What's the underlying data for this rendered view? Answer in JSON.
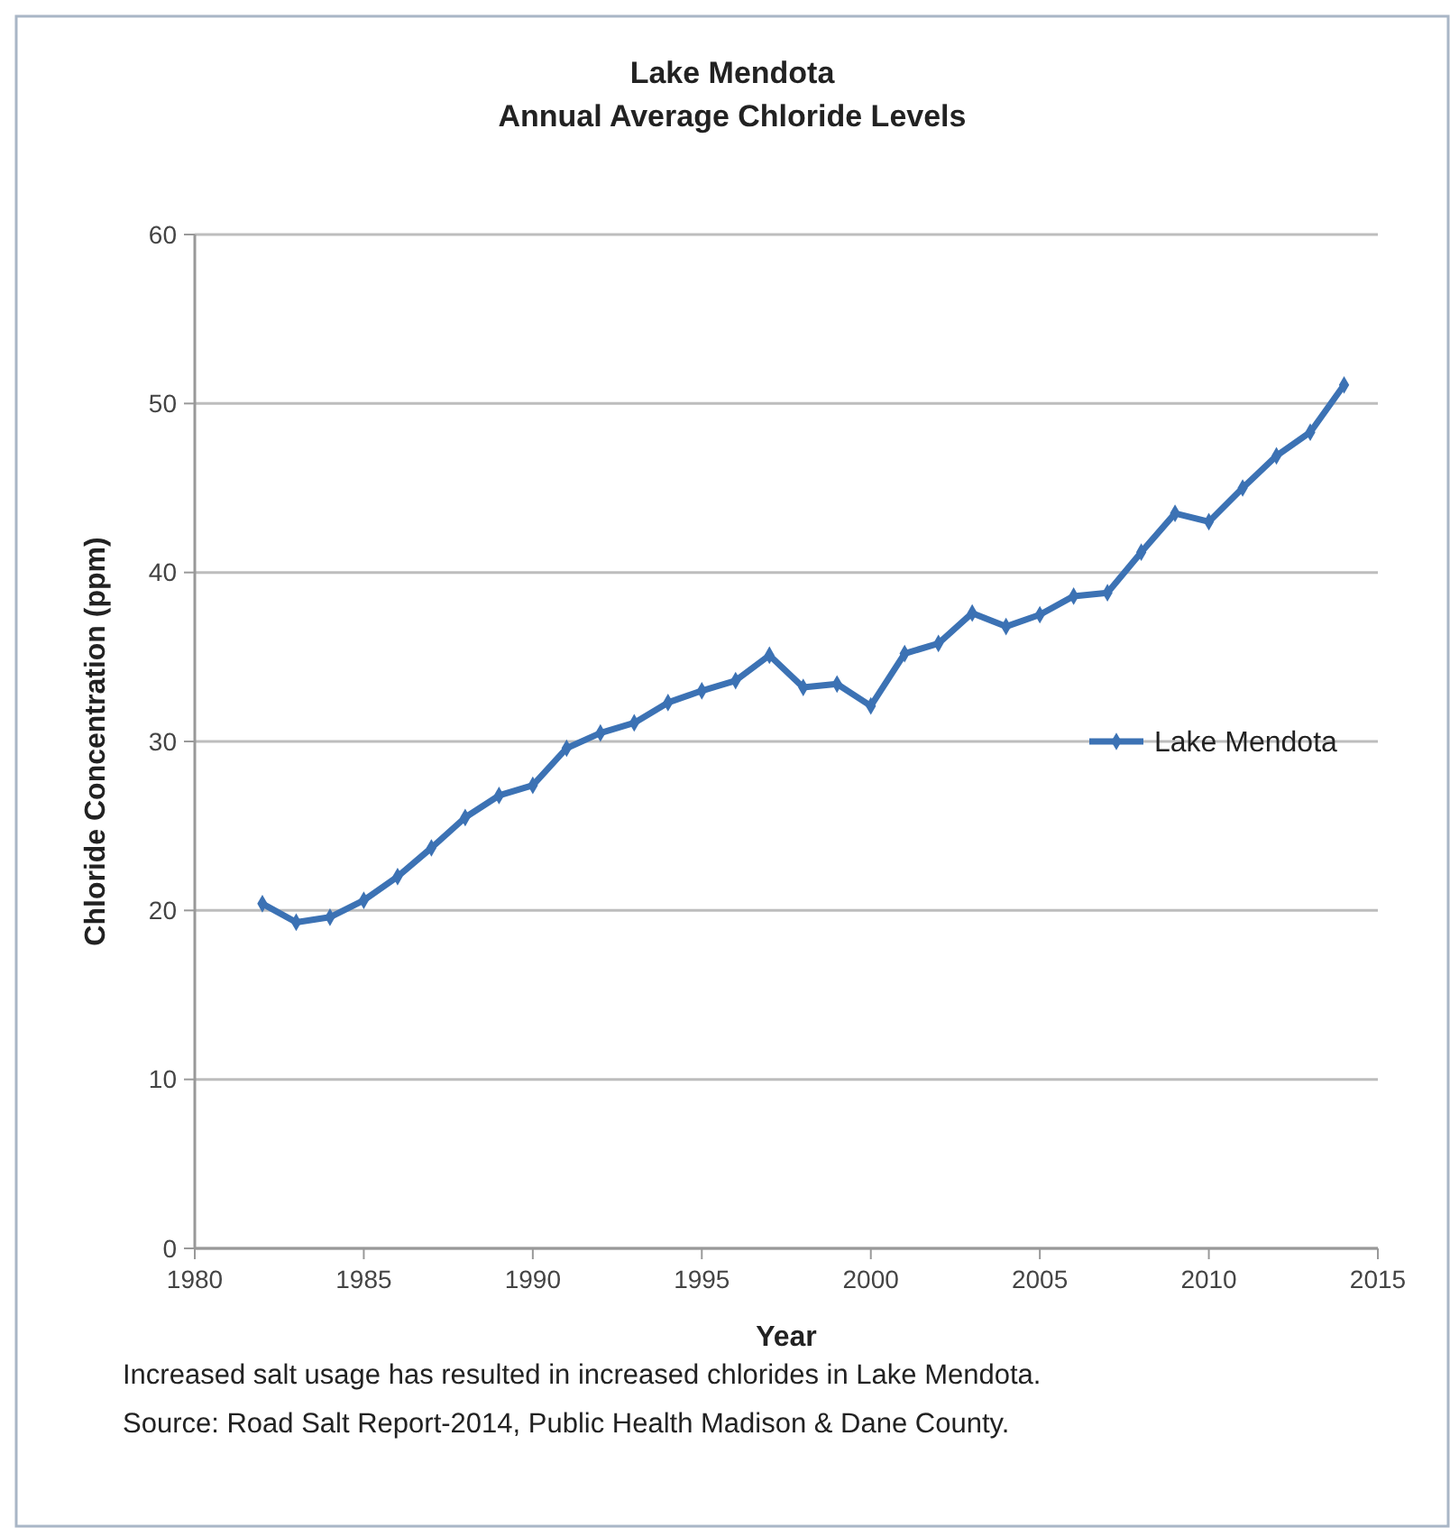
{
  "chart_data": {
    "type": "line",
    "title": "Lake Mendota\nAnnual Average Chloride Levels",
    "xlabel": "Year",
    "ylabel": "Chloride Concentration (ppm)",
    "x": [
      1982,
      1983,
      1984,
      1985,
      1986,
      1987,
      1988,
      1989,
      1990,
      1991,
      1992,
      1993,
      1994,
      1995,
      1996,
      1997,
      1998,
      1999,
      2000,
      2001,
      2002,
      2003,
      2004,
      2005,
      2006,
      2007,
      2008,
      2009,
      2010,
      2011,
      2012,
      2013,
      2014
    ],
    "series": [
      {
        "name": "Lake Mendota",
        "color": "#3c72b4",
        "values": [
          20.4,
          19.3,
          19.6,
          20.6,
          22.0,
          23.7,
          25.5,
          26.8,
          27.4,
          29.6,
          30.5,
          31.1,
          32.3,
          33.0,
          33.6,
          35.1,
          33.2,
          33.4,
          32.1,
          35.2,
          35.8,
          37.6,
          36.8,
          37.5,
          38.6,
          38.8,
          41.2,
          43.5,
          43.0,
          45.0,
          46.9,
          48.3,
          51.1
        ]
      }
    ],
    "xlim": [
      1980,
      2015
    ],
    "xticks": [
      1980,
      1985,
      1990,
      1995,
      2000,
      2005,
      2010,
      2015
    ],
    "ylim": [
      0,
      60
    ],
    "yticks": [
      0,
      10,
      20,
      30,
      40,
      50,
      60
    ],
    "grid": "y",
    "legend": "right",
    "marker": "diamond",
    "line_style": "solid",
    "annotations": [
      "Increased salt usage has resulted in increased chlorides in Lake Mendota.",
      "Source: Road Salt Report-2014, Public Health Madison & Dane County."
    ]
  }
}
